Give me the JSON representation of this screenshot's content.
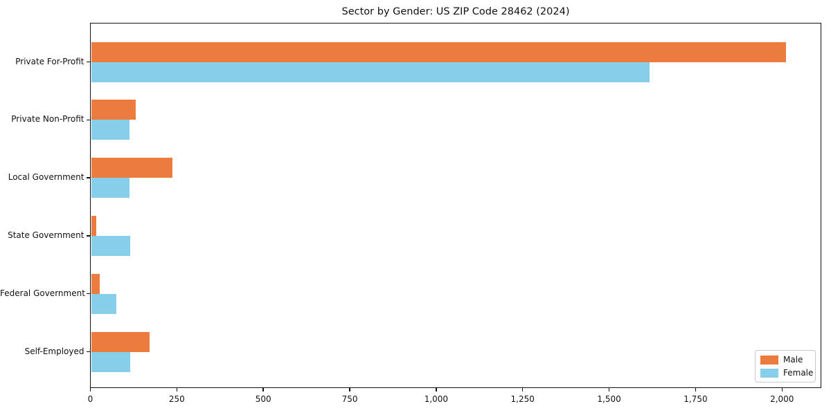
{
  "chart_data": {
    "type": "bar",
    "orientation": "horizontal",
    "title": "Sector by Gender: US ZIP Code 28462 (2024)",
    "categories": [
      "Private For-Profit",
      "Private Non-Profit",
      "Local Government",
      "State Government",
      "Federal Government",
      "Self-Employed"
    ],
    "series": [
      {
        "name": "Male",
        "color": "#ec7c3d",
        "values": [
          2012,
          132,
          238,
          18,
          27,
          172
        ]
      },
      {
        "name": "Female",
        "color": "#87ceeb",
        "values": [
          1617,
          114,
          113,
          115,
          75,
          115
        ]
      }
    ],
    "xlabel": "",
    "ylabel": "",
    "xlim": [
      0,
      2113
    ],
    "xticks": [
      0,
      250,
      500,
      750,
      1000,
      1250,
      1500,
      1750,
      2000
    ],
    "xtick_labels": [
      "0",
      "250",
      "500",
      "750",
      "1,000",
      "1,250",
      "1,500",
      "1,750",
      "2,000"
    ],
    "grid": false,
    "legend_position": "lower right"
  }
}
